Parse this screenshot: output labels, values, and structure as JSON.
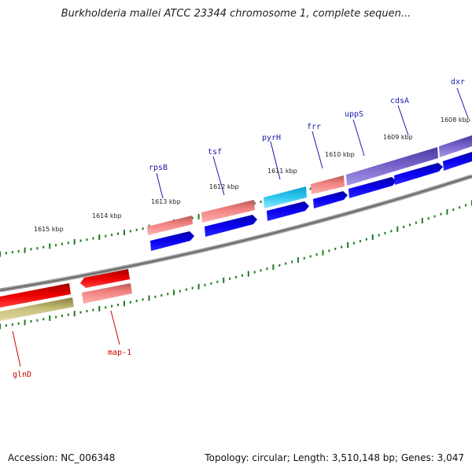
{
  "title": "Burkholderia mallei ATCC 23344 chromosome 1, complete sequen...",
  "footer": {
    "accession": "Accession: NC_006348",
    "topology": "Topology: circular; Length: 3,510,148 bp; Genes: 3,047"
  },
  "kbp_labels": [
    "1615 kbp",
    "1614 kbp",
    "1613 kbp",
    "1612 kbp",
    "1611 kbp",
    "1610 kbp",
    "1609 kbp",
    "1608 kbp"
  ],
  "gene_labels": {
    "top": [
      "rpsB",
      "tsf",
      "pyrH",
      "frr",
      "uppS",
      "cdsA",
      "dxr"
    ],
    "bottom": [
      "glnD",
      "map-1"
    ]
  },
  "colors": {
    "top_label": "#1a1aa8",
    "bottom_label": "#cc0000",
    "backbone": "#8a8a8a",
    "tick": "#1f7a1f",
    "blue_feature": "#0a00e0",
    "rrna_feature": "#f07a7a",
    "cyan_feature": "#22c0ee",
    "purple_feature": "#7a66cc",
    "red_feature": "#ee0000",
    "olive_feature": "#c8c07a"
  }
}
